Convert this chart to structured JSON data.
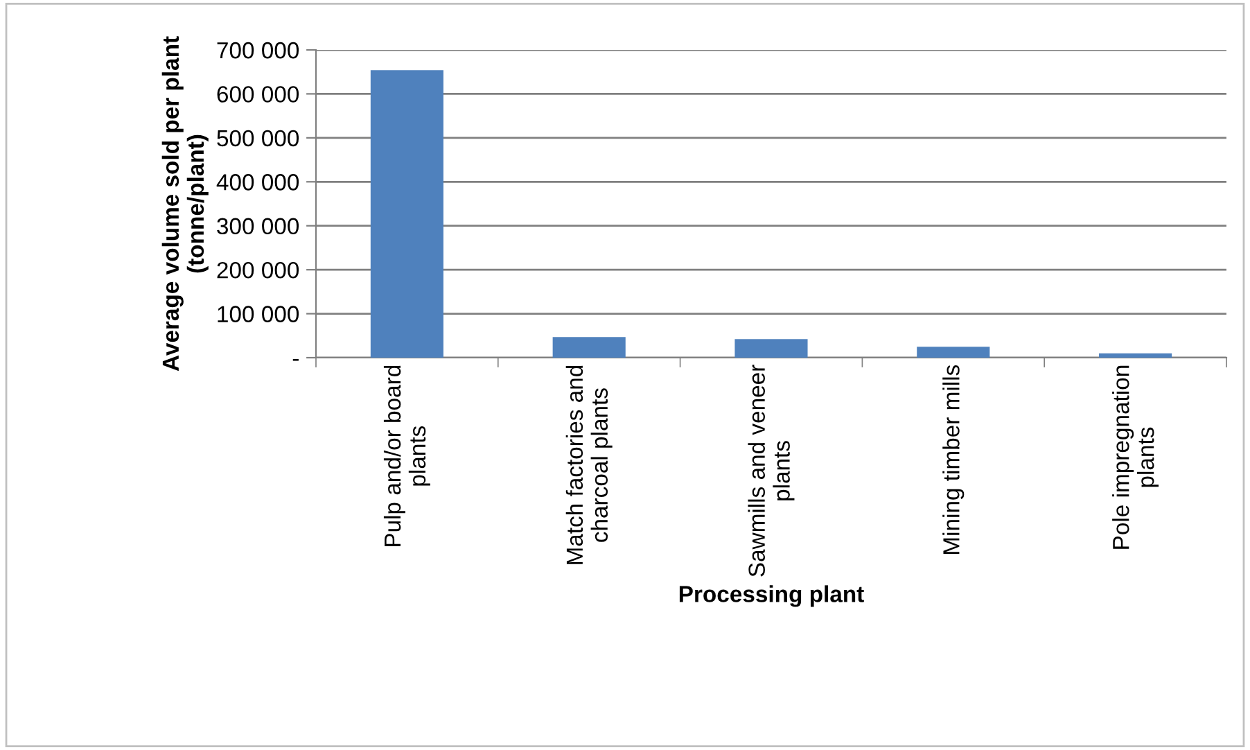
{
  "chart_data": {
    "type": "bar",
    "xlabel": "Processing plant",
    "ylabel": "Average volume sold per plant\n(tonne/plant)",
    "categories": [
      "Pulp and/or board\nplants",
      "Match factories and\ncharcoal plants",
      "Sawmills and veneer\nplants",
      "Mining timber mills",
      "Pole impregnation\nplants"
    ],
    "values": [
      654000,
      47000,
      42000,
      25000,
      10000
    ],
    "color": "#4f81bd",
    "ylim": [
      0,
      700000
    ],
    "yticks": [
      {
        "value": 0,
        "label": "-"
      },
      {
        "value": 100000,
        "label": "100 000"
      },
      {
        "value": 200000,
        "label": "200 000"
      },
      {
        "value": 300000,
        "label": "300 000"
      },
      {
        "value": 400000,
        "label": "400 000"
      },
      {
        "value": 500000,
        "label": "500 000"
      },
      {
        "value": 600000,
        "label": "600 000"
      },
      {
        "value": 700000,
        "label": "700 000"
      }
    ],
    "grid": "y",
    "legend": false
  }
}
